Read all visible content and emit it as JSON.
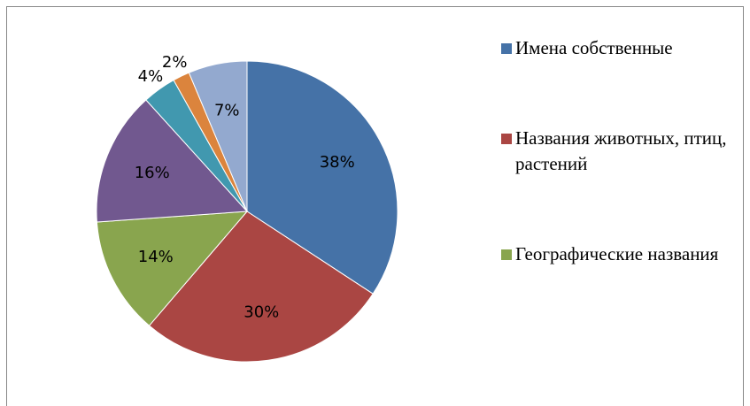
{
  "chart_data": {
    "type": "pie",
    "categories": [
      "Имена собственные",
      "Названия животных, птиц, растений",
      "Географические названия",
      null,
      null,
      null,
      null
    ],
    "values": [
      38,
      30,
      14,
      16,
      4,
      2,
      7
    ],
    "value_labels": [
      "38%",
      "30%",
      "14%",
      "16%",
      "4%",
      "2%",
      "7%"
    ],
    "colors": [
      "#4572a7",
      "#aa4643",
      "#89a54e",
      "#71588f",
      "#4198af",
      "#db843d",
      "#93a9cf"
    ],
    "legend": "right"
  }
}
